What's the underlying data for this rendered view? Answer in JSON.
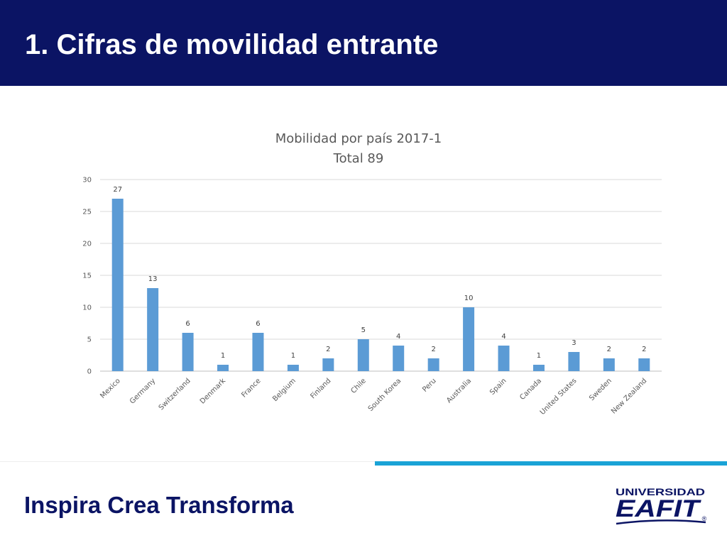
{
  "header": {
    "title": "1. Cifras de movilidad entrante"
  },
  "footer": {
    "slogan": "Inspira Crea Transforma",
    "logo_top": "UNIVERSIDAD",
    "logo_main": "EAFIT",
    "logo_mark": "®"
  },
  "colors": {
    "header_bg": "#0b1464",
    "bar": "#5b9bd5",
    "accent_line": "#1aa3d6",
    "slogan": "#0b1464"
  },
  "chart_data": {
    "type": "bar",
    "title_lines": [
      "Mobilidad por país 2017-1",
      "Total 89"
    ],
    "categories": [
      "Mexico",
      "Germany",
      "Switzerland",
      "Denmark",
      "France",
      "Belgium",
      "Finland",
      "Chile",
      "South Korea",
      "Peru",
      "Australia",
      "Spain",
      "Canada",
      "United States",
      "Sweden",
      "New Zealand"
    ],
    "values": [
      27,
      13,
      6,
      1,
      6,
      1,
      2,
      5,
      4,
      2,
      10,
      4,
      1,
      3,
      2,
      2
    ],
    "yticks": [
      0,
      5,
      10,
      15,
      20,
      25,
      30
    ],
    "ylim": [
      0,
      30
    ],
    "grid": true,
    "data_labels": true,
    "legend": "none"
  }
}
